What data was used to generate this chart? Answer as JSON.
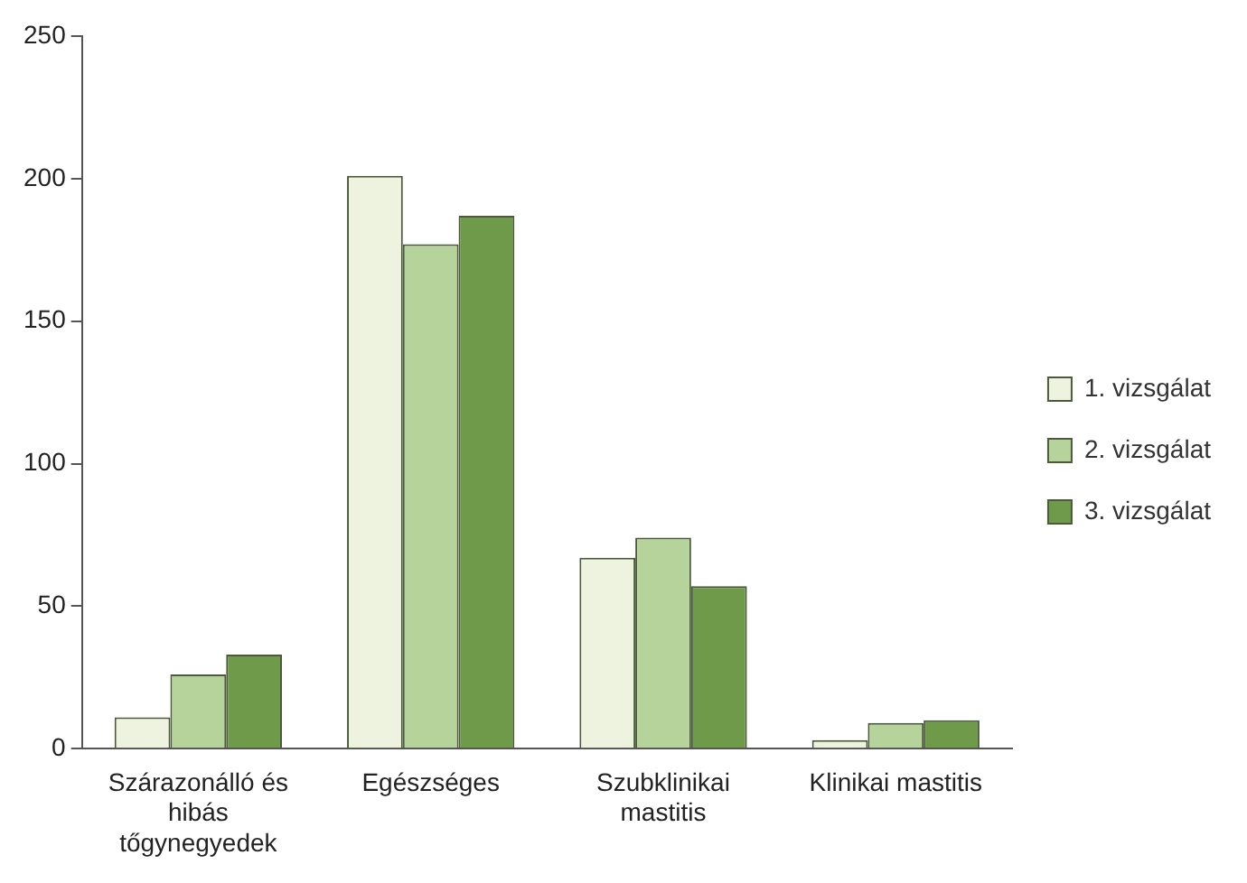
{
  "chart_data": {
    "type": "bar",
    "categories": [
      "Szárazonálló és hibás tőgynegyedek",
      "Egészséges",
      "Szubklinikai mastitis",
      "Klinikai mastitis"
    ],
    "series": [
      {
        "name": "1. vizsgálat",
        "color": "#eef3e0",
        "values": [
          11,
          201,
          67,
          3
        ]
      },
      {
        "name": "2. vizsgálat",
        "color": "#b5d39a",
        "values": [
          26,
          177,
          74,
          9
        ]
      },
      {
        "name": "3. vizsgálat",
        "color": "#6f9a4a",
        "values": [
          33,
          187,
          57,
          10
        ]
      }
    ],
    "ylim": [
      0,
      250
    ],
    "yticks": [
      0,
      50,
      100,
      150,
      200,
      250
    ],
    "grid": false,
    "legend": "right"
  }
}
